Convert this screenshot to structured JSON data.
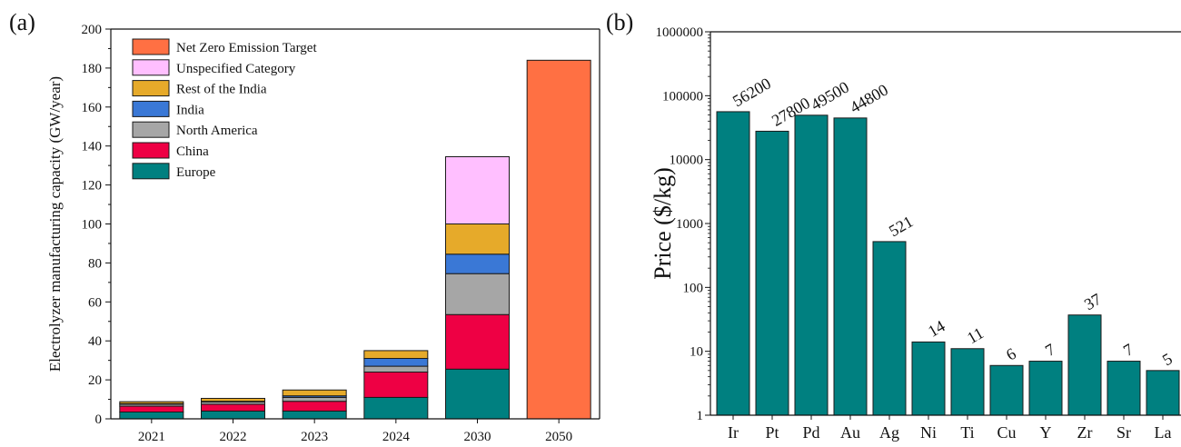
{
  "chart_data": [
    {
      "panel": "(a)",
      "type": "bar",
      "stacked": true,
      "ylabel": "Electrolyzer manufacturing capacity (GW/year)",
      "xlabel": "",
      "categories": [
        "2021",
        "2022",
        "2023",
        "2024",
        "2030",
        "2050"
      ],
      "ylim": [
        0,
        200
      ],
      "yticks": [
        "0",
        "20",
        "40",
        "60",
        "80",
        "100",
        "120",
        "140",
        "160",
        "180",
        "200"
      ],
      "legend_position": "top-left",
      "series": [
        {
          "name": "Europe",
          "color": "#008080",
          "values": [
            3.5,
            4,
            4,
            11,
            25.5,
            0
          ]
        },
        {
          "name": "China",
          "color": "#ee0044",
          "values": [
            3,
            3.5,
            5,
            13,
            28,
            0
          ]
        },
        {
          "name": "North America",
          "color": "#a6a6a6",
          "values": [
            1,
            1.2,
            2,
            3,
            21,
            0
          ]
        },
        {
          "name": "India",
          "color": "#3a78d6",
          "values": [
            0.3,
            0.3,
            0.8,
            4,
            10,
            0
          ]
        },
        {
          "name": "Rest of the India",
          "color": "#e6aa2a",
          "values": [
            1,
            1.5,
            3,
            4,
            15.5,
            0
          ]
        },
        {
          "name": "Unspecified Category",
          "color": "#ffbfff",
          "values": [
            0,
            0,
            0,
            0,
            34.5,
            0
          ]
        },
        {
          "name": "Net Zero Emission Target",
          "color": "#ff7043",
          "values": [
            0,
            0,
            0,
            0,
            0,
            184
          ]
        }
      ]
    },
    {
      "panel": "(b)",
      "type": "bar",
      "scale": "log",
      "ylabel": "Price ($/kg)",
      "xlabel": "",
      "categories": [
        "Ir",
        "Pt",
        "Pd",
        "Au",
        "Ag",
        "Ni",
        "Ti",
        "Cu",
        "Y",
        "Zr",
        "Sr",
        "La"
      ],
      "values": [
        56200,
        27800,
        49500,
        44800,
        521,
        14,
        11,
        6,
        7,
        37,
        7,
        5
      ],
      "data_labels": [
        "56200",
        "27800",
        "49500",
        "44800",
        "521",
        "14",
        "11",
        "6",
        "7",
        "37",
        "7",
        "5"
      ],
      "ylim": [
        1,
        1000000
      ],
      "yticks": [
        "1",
        "10",
        "100",
        "1000",
        "10000",
        "100000",
        "1000000"
      ],
      "color": "#008080"
    }
  ]
}
